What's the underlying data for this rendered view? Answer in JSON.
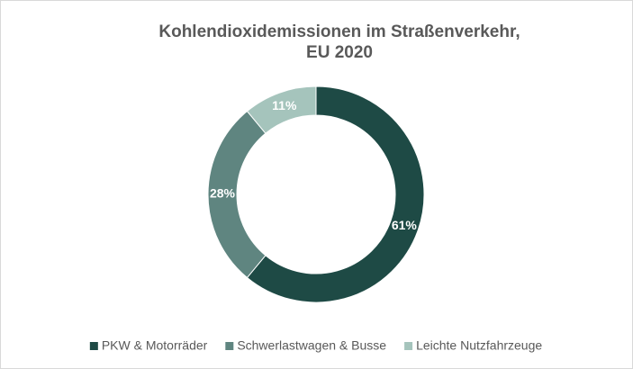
{
  "chart_data": {
    "type": "donut",
    "title": [
      "Kohlendioxidemissionen im Straßenverkehr,",
      "EU 2020"
    ],
    "categories": [
      "PKW & Motorräder",
      "Schwerlastwagen & Busse",
      "Leichte Nutzfahrzeuge"
    ],
    "values": [
      61,
      28,
      11
    ],
    "value_labels": [
      "61%",
      "28%",
      "11%"
    ],
    "colors": [
      "#1e4a45",
      "#5f8580",
      "#a5c4bc"
    ],
    "legend": "bottom"
  }
}
